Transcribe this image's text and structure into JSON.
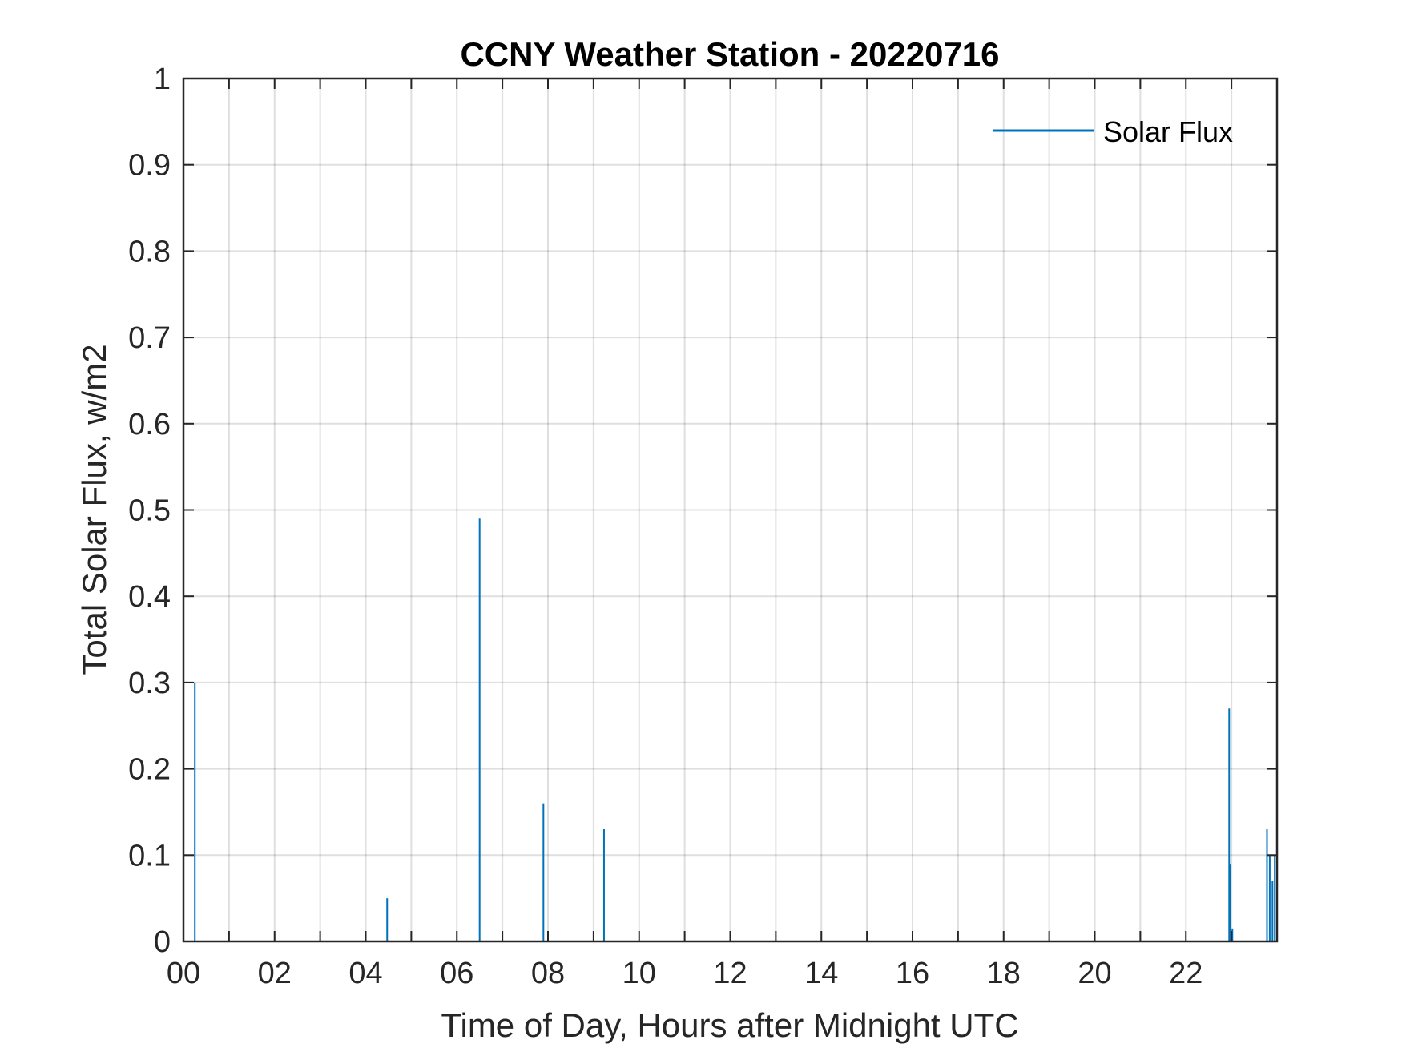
{
  "chart_data": {
    "type": "line",
    "title": "CCNY Weather Station - 20220716",
    "xlabel": "Time of Day, Hours after Midnight UTC",
    "ylabel": "Total Solar Flux, w/m2",
    "xlim": [
      0,
      24
    ],
    "ylim": [
      0,
      1
    ],
    "grid": true,
    "legend_position": "top-right",
    "x_ticks": [
      0,
      2,
      4,
      6,
      8,
      10,
      12,
      14,
      16,
      18,
      20,
      22
    ],
    "x_tick_labels": [
      "00",
      "02",
      "04",
      "06",
      "08",
      "10",
      "12",
      "14",
      "16",
      "18",
      "20",
      "22"
    ],
    "y_ticks": [
      0,
      0.1,
      0.2,
      0.3,
      0.4,
      0.5,
      0.6,
      0.7,
      0.8,
      0.9,
      1
    ],
    "y_tick_labels": [
      "0",
      "0.1",
      "0.2",
      "0.3",
      "0.4",
      "0.5",
      "0.6",
      "0.7",
      "0.8",
      "0.9",
      "1"
    ],
    "series": [
      {
        "name": "Solar Flux",
        "color": "#0072BD",
        "spikes": [
          {
            "x": 0.25,
            "y": 0.3
          },
          {
            "x": 4.47,
            "y": 0.05
          },
          {
            "x": 6.5,
            "y": 0.49
          },
          {
            "x": 7.9,
            "y": 0.16
          },
          {
            "x": 9.23,
            "y": 0.13
          },
          {
            "x": 22.95,
            "y": 0.27
          },
          {
            "x": 22.98,
            "y": 0.09
          },
          {
            "x": 23.02,
            "y": 0.015
          },
          {
            "x": 23.78,
            "y": 0.13
          },
          {
            "x": 23.84,
            "y": 0.1
          },
          {
            "x": 23.9,
            "y": 0.07
          },
          {
            "x": 23.95,
            "y": 0.1
          }
        ]
      }
    ]
  }
}
